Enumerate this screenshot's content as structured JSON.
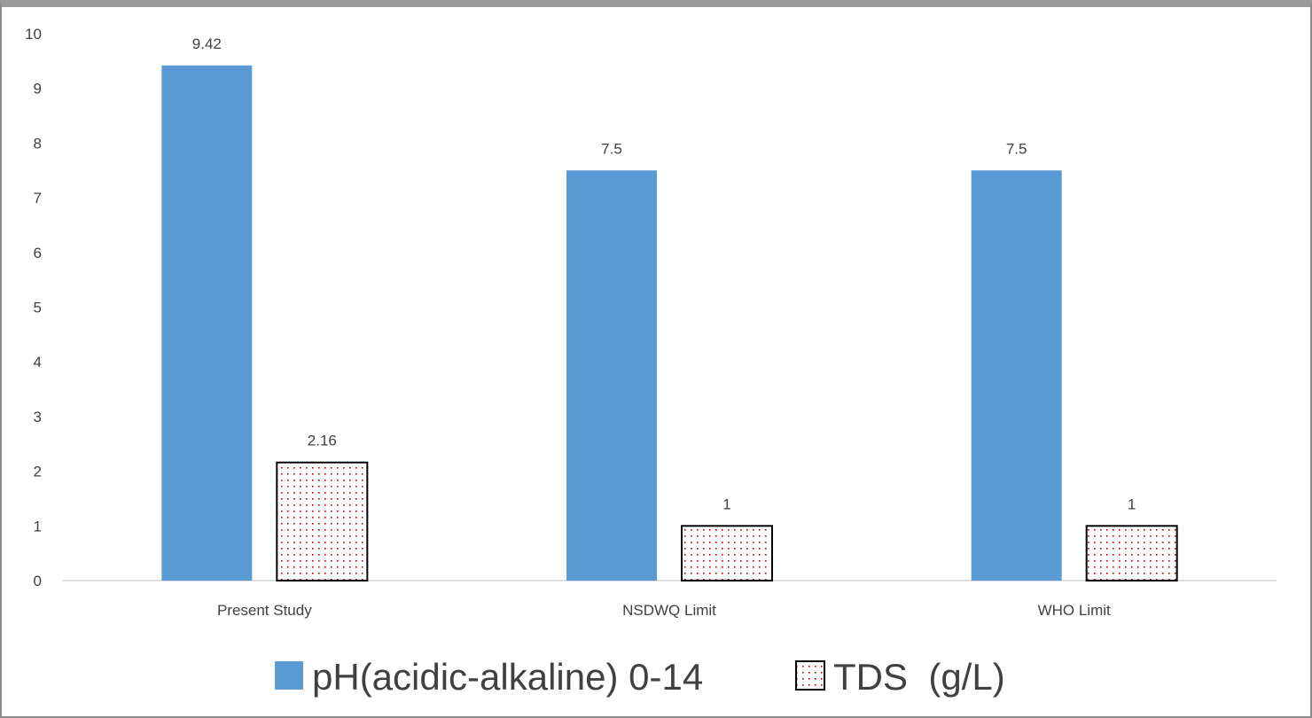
{
  "chart_data": {
    "type": "bar",
    "categories": [
      "Present Study",
      "NSDWQ Limit",
      "WHO Limit"
    ],
    "series": [
      {
        "name": "pH(acidic-alkaline) 0-14",
        "values": [
          9.42,
          7.5,
          7.5
        ],
        "labels": [
          "9.42",
          "7.5",
          "7.5"
        ],
        "color": "#5b9bd5",
        "pattern": "solid"
      },
      {
        "name": "TDS  (g/L)",
        "values": [
          2.16,
          1,
          1
        ],
        "labels": [
          "2.16",
          "1",
          "1"
        ],
        "color": "#c00000",
        "pattern": "dotted"
      }
    ],
    "yticks": [
      "0",
      "1",
      "2",
      "3",
      "4",
      "5",
      "6",
      "7",
      "8",
      "9",
      "10"
    ],
    "ylim": [
      0,
      10
    ],
    "xlabel": "",
    "ylabel": "",
    "title": "",
    "grid": false,
    "legend_position": "bottom"
  }
}
